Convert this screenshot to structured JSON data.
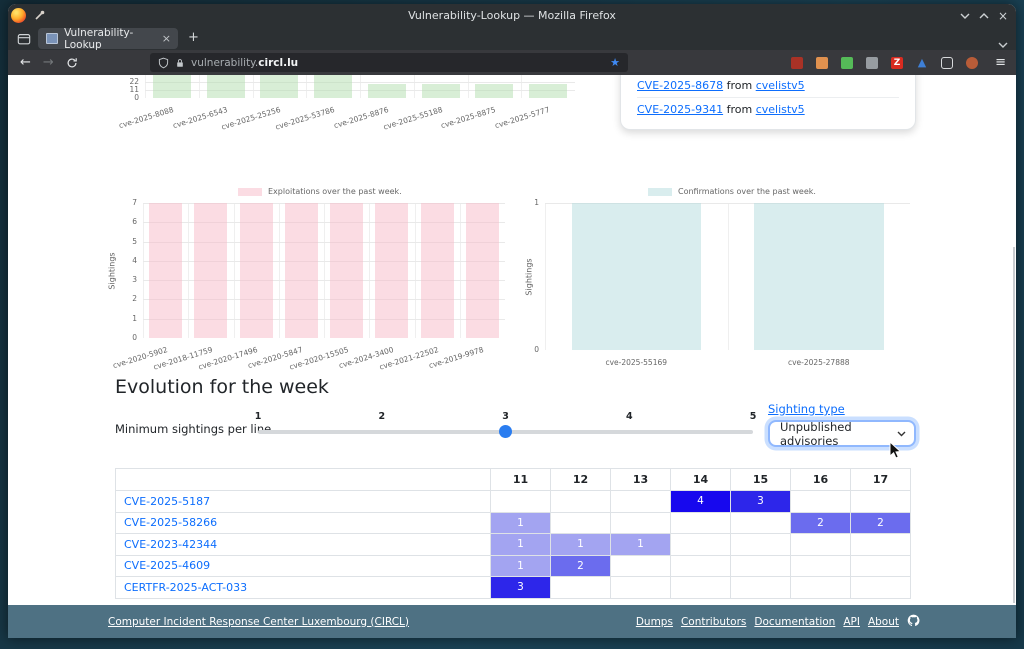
{
  "browser": {
    "window_title": "Vulnerability-Lookup — Mozilla Firefox",
    "tab_title": "Vulnerability-Lookup",
    "tab_close_glyph": "×",
    "new_tab_glyph": "+",
    "url_prefix": "vulnerability.",
    "url_domain": "circl.lu",
    "star_glyph": "★",
    "back_glyph": "←",
    "forward_glyph": "→",
    "menu_glyph": "≡",
    "extension_icons": [
      {
        "name": "shield-addon-icon",
        "color": "#a93226"
      },
      {
        "name": "tshirt-addon-icon",
        "color": "#e0914f"
      },
      {
        "name": "green-addon-icon",
        "color": "#55bb58"
      },
      {
        "name": "bird-addon-icon",
        "color": "#979ca1"
      },
      {
        "name": "z-addon-icon",
        "color": "#d92b20",
        "glyph": "Z"
      },
      {
        "name": "triangle-addon-icon",
        "color": "#3e7fd6",
        "glyph": "▲"
      },
      {
        "name": "extensions-puzzle-icon",
        "color": "outline"
      },
      {
        "name": "account-avatar-icon",
        "color": "#b85c38",
        "round": true
      }
    ]
  },
  "card": {
    "items": [
      {
        "cve": "CVE-2025-8678",
        "connector": "from",
        "source": "cvelistv5"
      },
      {
        "cve": "CVE-2025-9341",
        "connector": "from",
        "source": "cvelistv5"
      }
    ]
  },
  "chart_data": [
    {
      "id": "top-sightings",
      "type": "bar",
      "legend": null,
      "categories": [
        "cve-2025-8088",
        "cve-2025-6543",
        "cve-2025-25256",
        "cve-2025-53786",
        "cve-2025-8876",
        "cve-2025-55188",
        "cve-2025-8875",
        "cve-2025-5777"
      ],
      "values": [
        33,
        33,
        33,
        33,
        19,
        19,
        19,
        19
      ],
      "yticks": [
        0,
        11,
        22
      ],
      "ylim": [
        0,
        22
      ],
      "clipped_top": true,
      "color": "#b1ddad"
    },
    {
      "id": "exploitations",
      "type": "bar",
      "legend": "Exploitations over the past week.",
      "ylabel": "Sightings",
      "categories": [
        "cve-2020-5902",
        "cve-2018-11759",
        "cve-2020-17496",
        "cve-2020-5847",
        "cve-2020-15505",
        "cve-2024-3400",
        "cve-2021-22502",
        "cve-2019-9978"
      ],
      "values": [
        7,
        7,
        7,
        7,
        7,
        7,
        7,
        7
      ],
      "yticks": [
        0,
        1,
        2,
        3,
        4,
        5,
        6,
        7
      ],
      "ylim": [
        0,
        7
      ],
      "color": "#f7b9c7"
    },
    {
      "id": "confirmations",
      "type": "bar",
      "legend": "Confirmations over the past week.",
      "ylabel": "Sightings",
      "categories": [
        "cve-2025-55169",
        "cve-2025-27888"
      ],
      "values": [
        1,
        1
      ],
      "yticks": [
        0,
        1
      ],
      "ylim": [
        0,
        1
      ],
      "color": "#b3dbdd"
    }
  ],
  "evolution": {
    "heading": "Evolution for the week",
    "slider_label": "Minimum sightings per line",
    "slider_ticks": [
      "1",
      "2",
      "3",
      "4",
      "5"
    ],
    "slider_value": 3,
    "sighting_type_link": "Sighting type",
    "sighting_type_value": "Unpublished advisories"
  },
  "table": {
    "columns": [
      "11",
      "12",
      "13",
      "14",
      "15",
      "16",
      "17"
    ],
    "rows": [
      {
        "id": "CVE-2025-5187",
        "cells": [
          {
            "col": "14",
            "value": 4
          },
          {
            "col": "15",
            "value": 3
          }
        ]
      },
      {
        "id": "CVE-2025-58266",
        "cells": [
          {
            "col": "11",
            "value": 1
          },
          {
            "col": "16",
            "value": 2
          },
          {
            "col": "17",
            "value": 2
          }
        ]
      },
      {
        "id": "CVE-2023-42344",
        "cells": [
          {
            "col": "11",
            "value": 1
          },
          {
            "col": "12",
            "value": 1
          },
          {
            "col": "13",
            "value": 1
          }
        ]
      },
      {
        "id": "CVE-2025-4609",
        "cells": [
          {
            "col": "11",
            "value": 1
          },
          {
            "col": "12",
            "value": 2
          }
        ]
      },
      {
        "id": "CERTFR-2025-ACT-033",
        "cells": [
          {
            "col": "11",
            "value": 3
          }
        ]
      }
    ],
    "value_colors": {
      "1": "#a3a4f1",
      "2": "#6b6cee",
      "3": "#2d26ea",
      "4": "#1708ee"
    }
  },
  "footer": {
    "org_link": "Computer Incident Response Center Luxembourg (CIRCL)",
    "links": [
      "Dumps",
      "Contributors",
      "Documentation",
      "API",
      "About"
    ]
  }
}
